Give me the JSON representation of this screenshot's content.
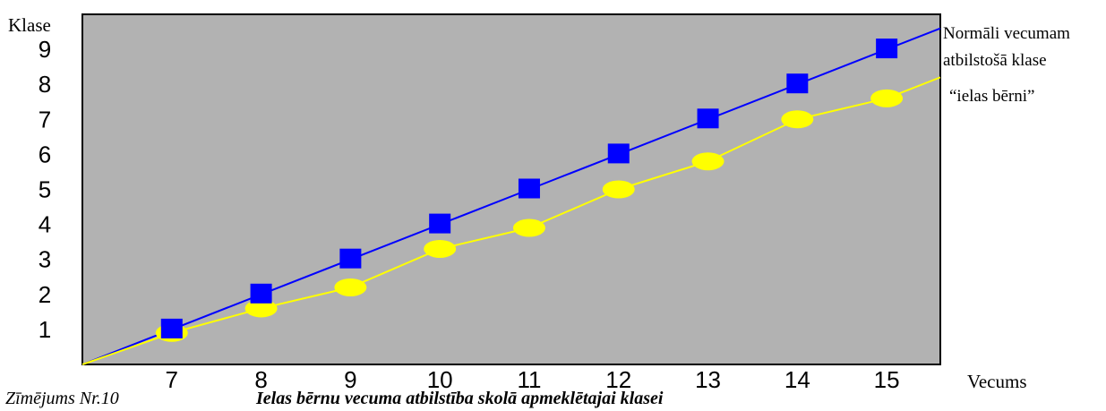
{
  "chart_data": {
    "type": "line",
    "ylabel": "Klase",
    "xlabel": "Vecums",
    "x_ticks": [
      "7",
      "8",
      "9",
      "10",
      "11",
      "12",
      "13",
      "14",
      "15"
    ],
    "y_ticks": [
      "1",
      "2",
      "3",
      "4",
      "5",
      "6",
      "7",
      "8",
      "9"
    ],
    "xlim": [
      6,
      15.6
    ],
    "ylim": [
      0,
      10
    ],
    "grid": false,
    "background_color": "#b2b2b2",
    "series": [
      {
        "name": "Normāli vecumam atbilstošā klase",
        "label_lines": [
          "Normāli vecumam",
          "atbilstošā klase"
        ],
        "marker": "square",
        "color": "#0000ff",
        "x": [
          7,
          8,
          9,
          10,
          11,
          12,
          13,
          14,
          15
        ],
        "y": [
          1,
          2,
          3,
          4,
          5,
          6,
          7,
          8,
          9
        ]
      },
      {
        "name": "“ielas bērni”",
        "label_lines": [
          "“ielas bērni”"
        ],
        "marker": "ellipse",
        "color": "#ffff00",
        "x": [
          7,
          8,
          9,
          10,
          11,
          12,
          13,
          14,
          15
        ],
        "y": [
          0.9,
          1.6,
          2.2,
          3.3,
          3.9,
          5.0,
          5.8,
          7.0,
          7.6
        ]
      }
    ]
  },
  "caption": {
    "figure_label": "Zīmējums Nr.10",
    "title": "Ielas bērnu vecuma atbilstība skolā apmeklētajai klasei"
  }
}
